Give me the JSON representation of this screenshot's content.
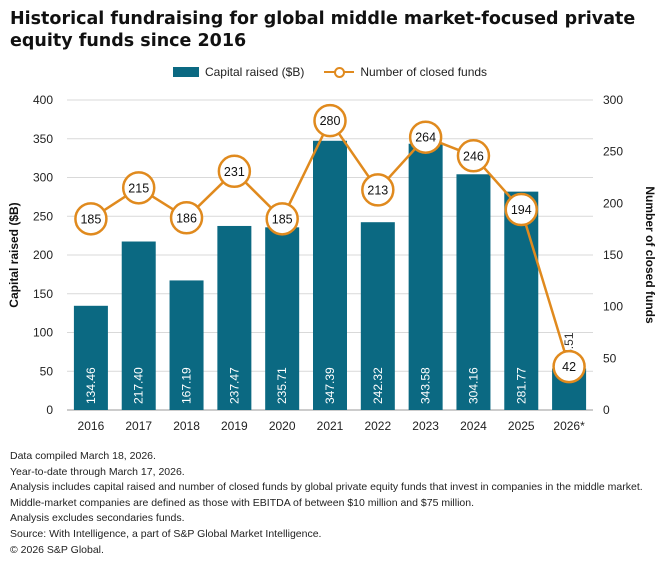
{
  "chart_data": {
    "type": "bar+line",
    "title": "Historical fundraising for global middle market-focused private equity funds since 2016",
    "categories": [
      "2016",
      "2017",
      "2018",
      "2019",
      "2020",
      "2021",
      "2022",
      "2023",
      "2024",
      "2025",
      "2026*"
    ],
    "series": [
      {
        "name": "Capital raised ($B)",
        "type": "bar",
        "axis": "left",
        "color": "#0b6982",
        "values": [
          134.46,
          217.4,
          167.19,
          237.47,
          235.71,
          347.39,
          242.32,
          343.58,
          304.16,
          281.77,
          53.51
        ],
        "labels": [
          "134.46",
          "217.40",
          "167.19",
          "237.47",
          "235.71",
          "347.39",
          "242.32",
          "343.58",
          "304.16",
          "281.77",
          "53.51"
        ]
      },
      {
        "name": "Number of closed funds",
        "type": "line",
        "axis": "right",
        "color": "#e08a1e",
        "values": [
          185,
          215,
          186,
          231,
          185,
          280,
          213,
          264,
          246,
          194,
          42
        ],
        "labels": [
          "185",
          "215",
          "186",
          "231",
          "185",
          "280",
          "213",
          "264",
          "246",
          "194",
          "42"
        ]
      }
    ],
    "ylabel": "Capital raised ($B)",
    "y2label": "Number of closed funds",
    "ylim": [
      0,
      400
    ],
    "y2lim": [
      0,
      300
    ],
    "yticks": [
      "0",
      "50",
      "100",
      "150",
      "200",
      "250",
      "300",
      "350",
      "400"
    ],
    "y2ticks": [
      "0",
      "50",
      "100",
      "150",
      "200",
      "250",
      "300"
    ],
    "legend_position": "top-center"
  },
  "notes": [
    "Data compiled March 18, 2026.",
    "Year-to-date through March 17, 2026.",
    "Analysis includes capital raised and number of closed funds by global private equity funds that invest in companies in the middle market.",
    "Middle-market companies are defined as those with EBITDA of between $10 million and $75 million.",
    "Analysis excludes secondaries funds.",
    "Source: With Intelligence, a part of S&P Global Market Intelligence.",
    "© 2026 S&P Global."
  ]
}
